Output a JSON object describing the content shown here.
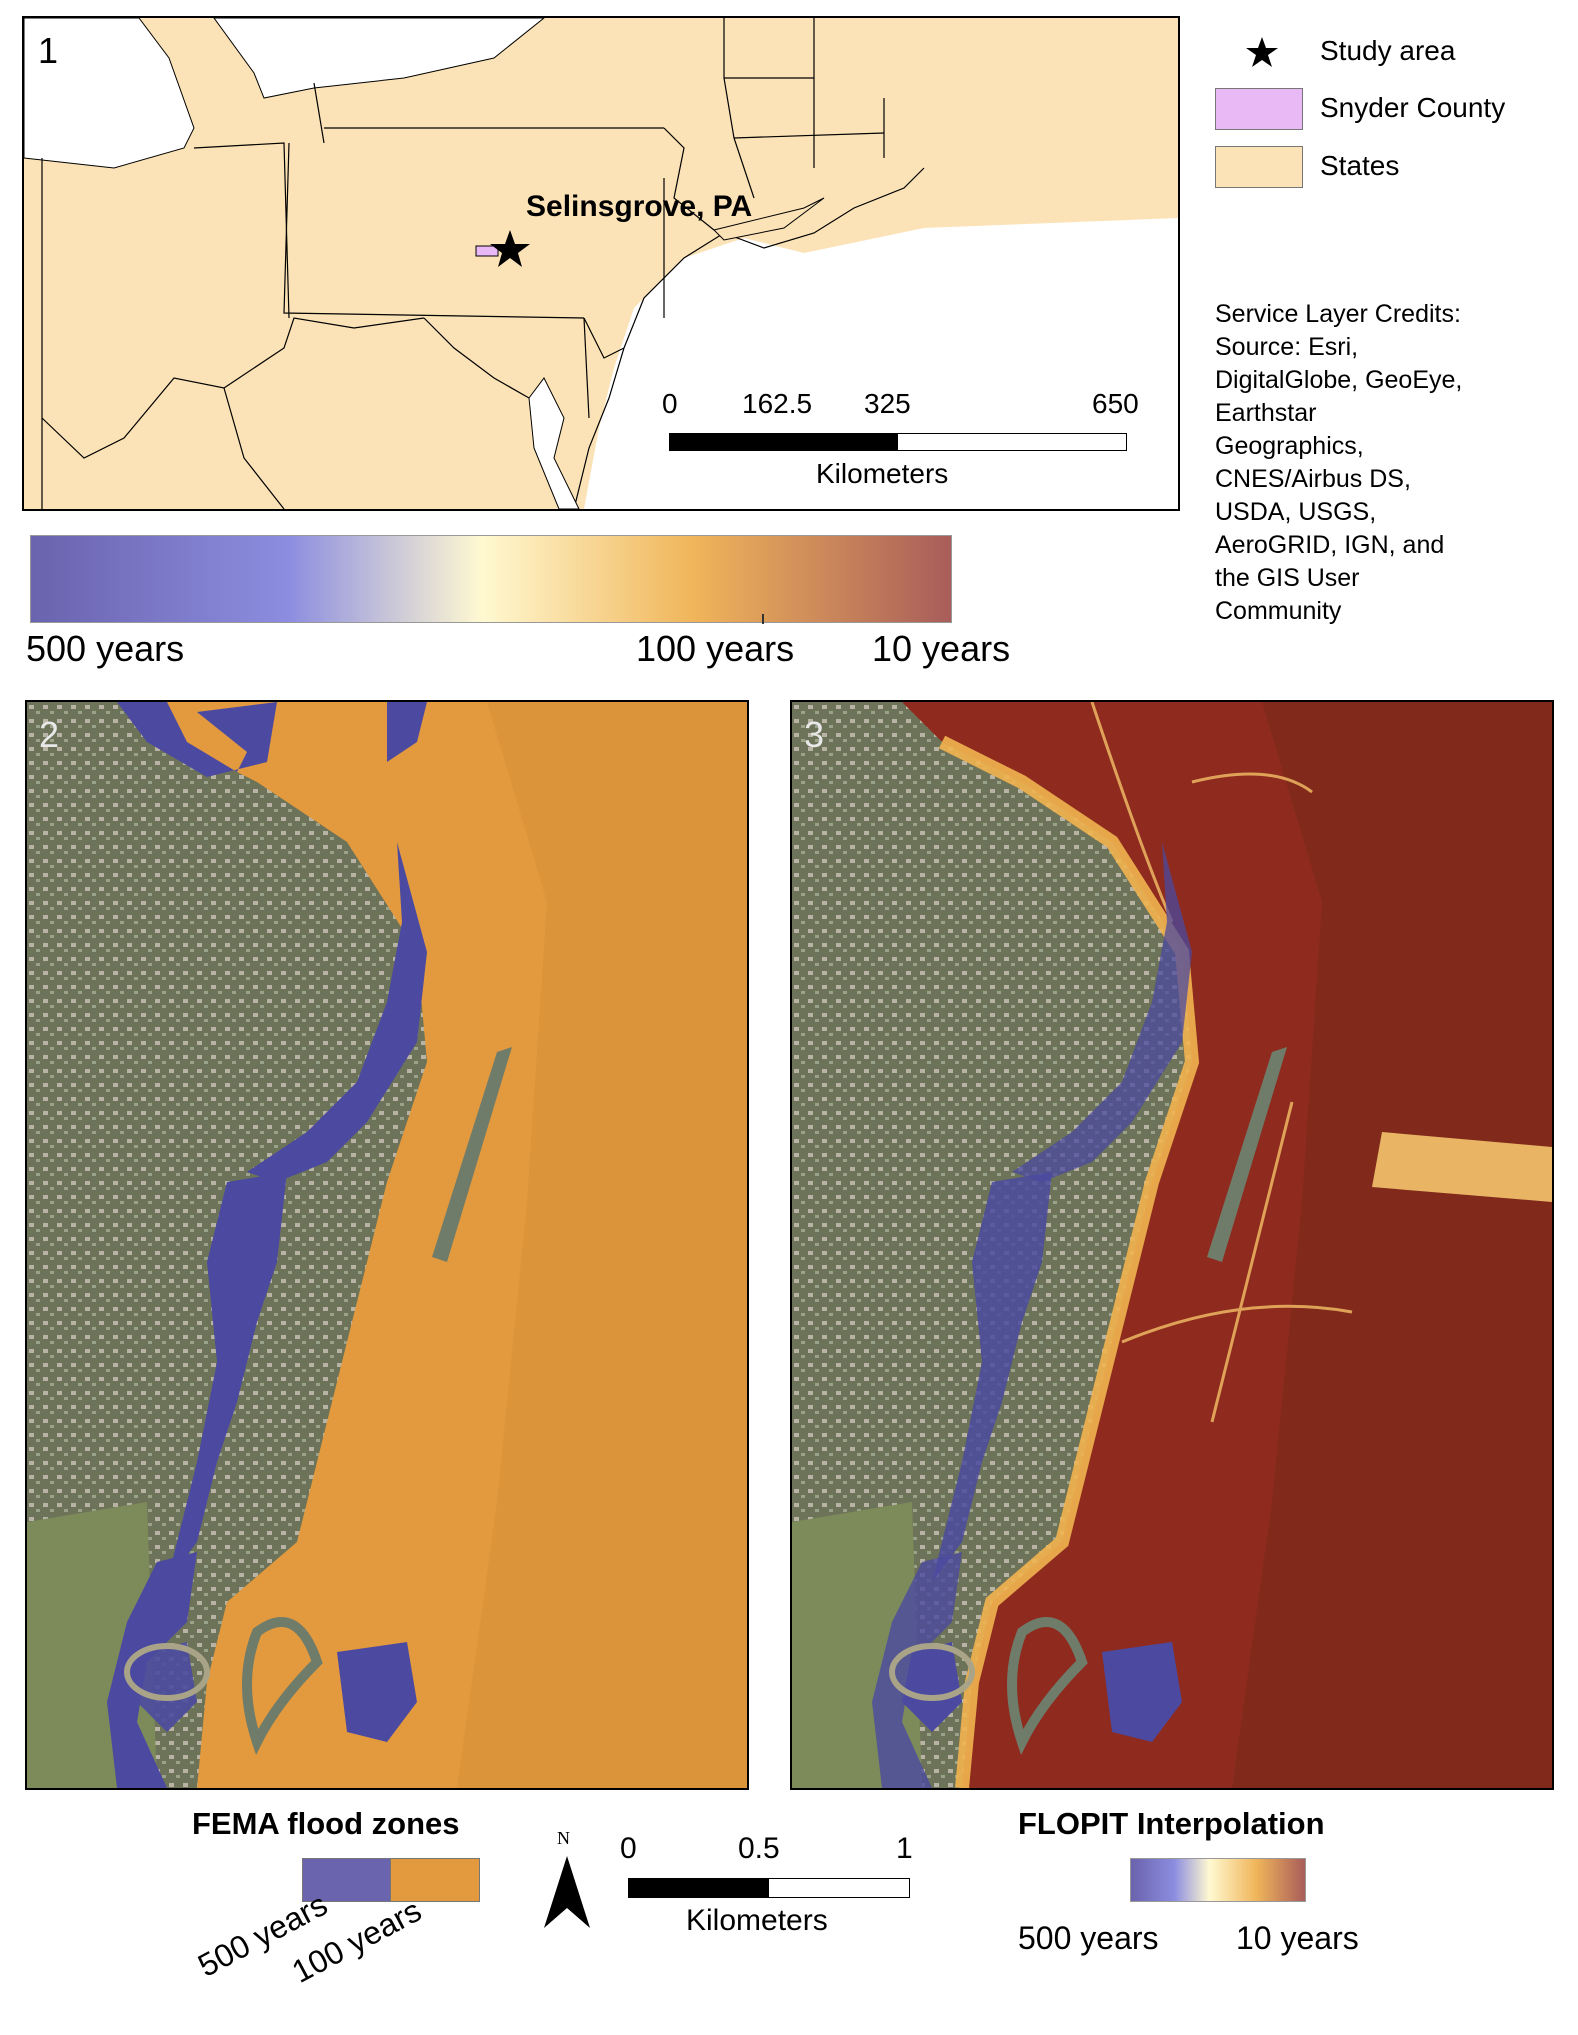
{
  "panel1": {
    "number": "1",
    "place_label": "Selinsgrove, PA",
    "scale": {
      "ticks": [
        "0",
        "162.5",
        "325",
        "650"
      ],
      "unit": "Kilometers"
    },
    "colors": {
      "states": "#fbe3b7",
      "snyder": "#e8b9f5",
      "water": "#ffffff"
    }
  },
  "legend": {
    "items": [
      {
        "label": "Study area",
        "symbol": "star-icon"
      },
      {
        "label": "Snyder County",
        "color": "#e8b9f5"
      },
      {
        "label": "States",
        "color": "#fbe3b7"
      }
    ],
    "credits": [
      "Service Layer Credits:",
      "Source: Esri,",
      "DigitalGlobe, GeoEye,",
      "Earthstar",
      "Geographics,",
      "CNES/Airbus DS,",
      "USDA, USGS,",
      "AeroGRID, IGN, and",
      "the GIS User",
      "Community"
    ]
  },
  "colorbar": {
    "labels": [
      "500 years",
      "100 years",
      "10 years"
    ],
    "stops": [
      "#6a63ad",
      "#8c8de0",
      "#fff9d1",
      "#f0b55a",
      "#a85d5a"
    ]
  },
  "panel2": {
    "number": "2",
    "colors": {
      "orange": "#e39a3e",
      "blue": "#4b4aa0"
    }
  },
  "panel3": {
    "number": "3",
    "colors": {
      "red": "#8e2b1e",
      "yellow": "#f2b450",
      "blue": "#4b4aa0"
    }
  },
  "fema_legend": {
    "title": "FEMA flood zones",
    "labels": [
      "500 years",
      "100 years"
    ],
    "colors": [
      "#6a63ad",
      "#e39a3e"
    ]
  },
  "bottom_scale": {
    "north": "N",
    "ticks": [
      "0",
      "0.5",
      "1"
    ],
    "unit": "Kilometers"
  },
  "flopit_legend": {
    "title": "FLOPIT Interpolation",
    "labels": [
      "500 years",
      "10 years"
    ]
  }
}
